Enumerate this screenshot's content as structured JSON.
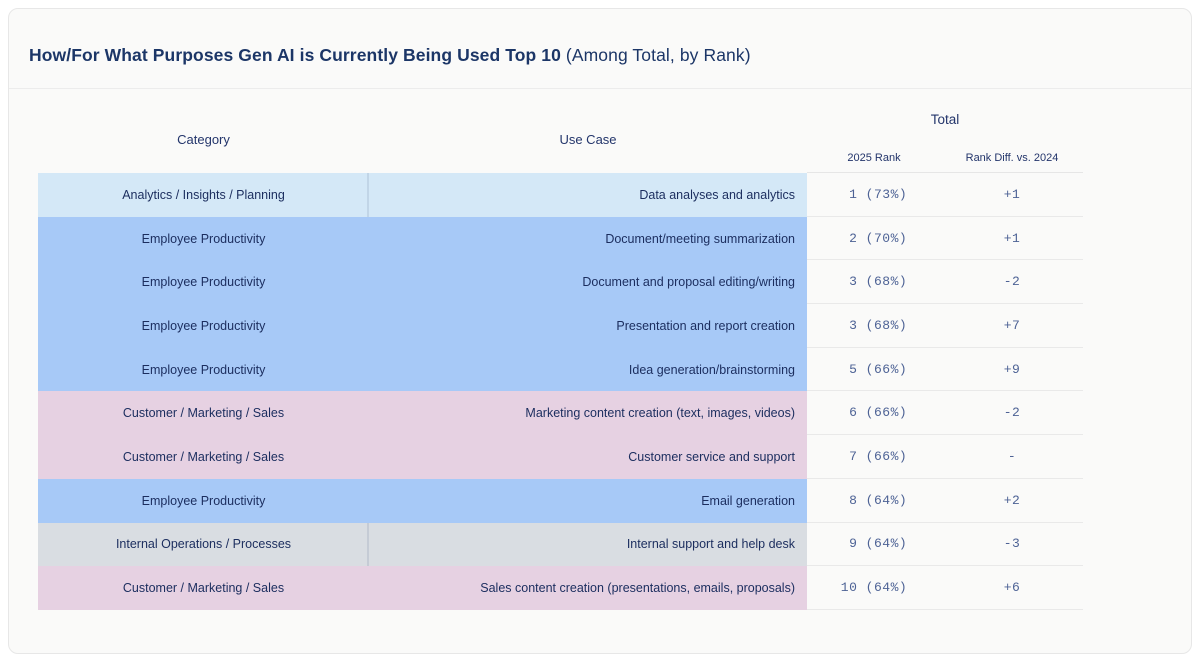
{
  "title": {
    "main": "How/For What Purposes Gen AI is Currently Being Used Top 10",
    "suffix": " (Among Total, by Rank)"
  },
  "colors": {
    "lightblue": "#d4e8f7",
    "blue": "#a7c9f7",
    "pink": "#e6d1e2",
    "gray": "#d9dde2",
    "title_navy": "#1c3667",
    "row_text_navy": "#1b2d5e",
    "rank_text_slate": "#4d6295"
  },
  "chart_data": {
    "type": "table",
    "title": "How/For What Purposes Gen AI is Currently Being Used Top 10 (Among Total, by Rank)",
    "group_header": "Total",
    "columns": [
      "Category",
      "Use Case",
      "2025 Rank",
      "Rank Diff. vs. 2024"
    ],
    "rows": [
      {
        "category": "Analytics / Insights / Planning",
        "use_case": "Data analyses and analytics",
        "rank_2025": 1,
        "pct": "73%",
        "rank_display": " 1 (73%)",
        "diff": "+1",
        "color": "lightblue"
      },
      {
        "category": "Employee Productivity",
        "use_case": "Document/meeting summarization",
        "rank_2025": 2,
        "pct": "70%",
        "rank_display": " 2 (70%)",
        "diff": "+1",
        "color": "blue"
      },
      {
        "category": "Employee Productivity",
        "use_case": "Document and proposal editing/writing",
        "rank_2025": 3,
        "pct": "68%",
        "rank_display": " 3 (68%)",
        "diff": "-2",
        "color": "blue"
      },
      {
        "category": "Employee Productivity",
        "use_case": "Presentation and report creation",
        "rank_2025": 3,
        "pct": "68%",
        "rank_display": " 3 (68%)",
        "diff": "+7",
        "color": "blue"
      },
      {
        "category": "Employee Productivity",
        "use_case": "Idea generation/brainstorming",
        "rank_2025": 5,
        "pct": "66%",
        "rank_display": " 5 (66%)",
        "diff": "+9",
        "color": "blue"
      },
      {
        "category": "Customer / Marketing / Sales",
        "use_case": "Marketing content creation (text, images, videos)",
        "rank_2025": 6,
        "pct": "66%",
        "rank_display": " 6 (66%)",
        "diff": "-2",
        "color": "pink"
      },
      {
        "category": "Customer / Marketing / Sales",
        "use_case": "Customer service and support",
        "rank_2025": 7,
        "pct": "66%",
        "rank_display": " 7 (66%)",
        "diff": "-",
        "color": "pink"
      },
      {
        "category": "Employee Productivity",
        "use_case": "Email generation",
        "rank_2025": 8,
        "pct": "64%",
        "rank_display": " 8 (64%)",
        "diff": "+2",
        "color": "blue"
      },
      {
        "category": "Internal Operations / Processes",
        "use_case": "Internal support and help desk",
        "rank_2025": 9,
        "pct": "64%",
        "rank_display": " 9 (64%)",
        "diff": "-3",
        "color": "gray"
      },
      {
        "category": "Customer / Marketing / Sales",
        "use_case": "Sales content creation (presentations, emails, proposals)",
        "rank_2025": 10,
        "pct": "64%",
        "rank_display": "10 (64%)",
        "diff": "+6",
        "color": "pink"
      }
    ]
  },
  "table": {
    "headers": {
      "category": "Category",
      "use_case": "Use Case",
      "group": "Total",
      "rank": "2025 Rank",
      "diff": "Rank Diff. vs. 2024"
    }
  }
}
